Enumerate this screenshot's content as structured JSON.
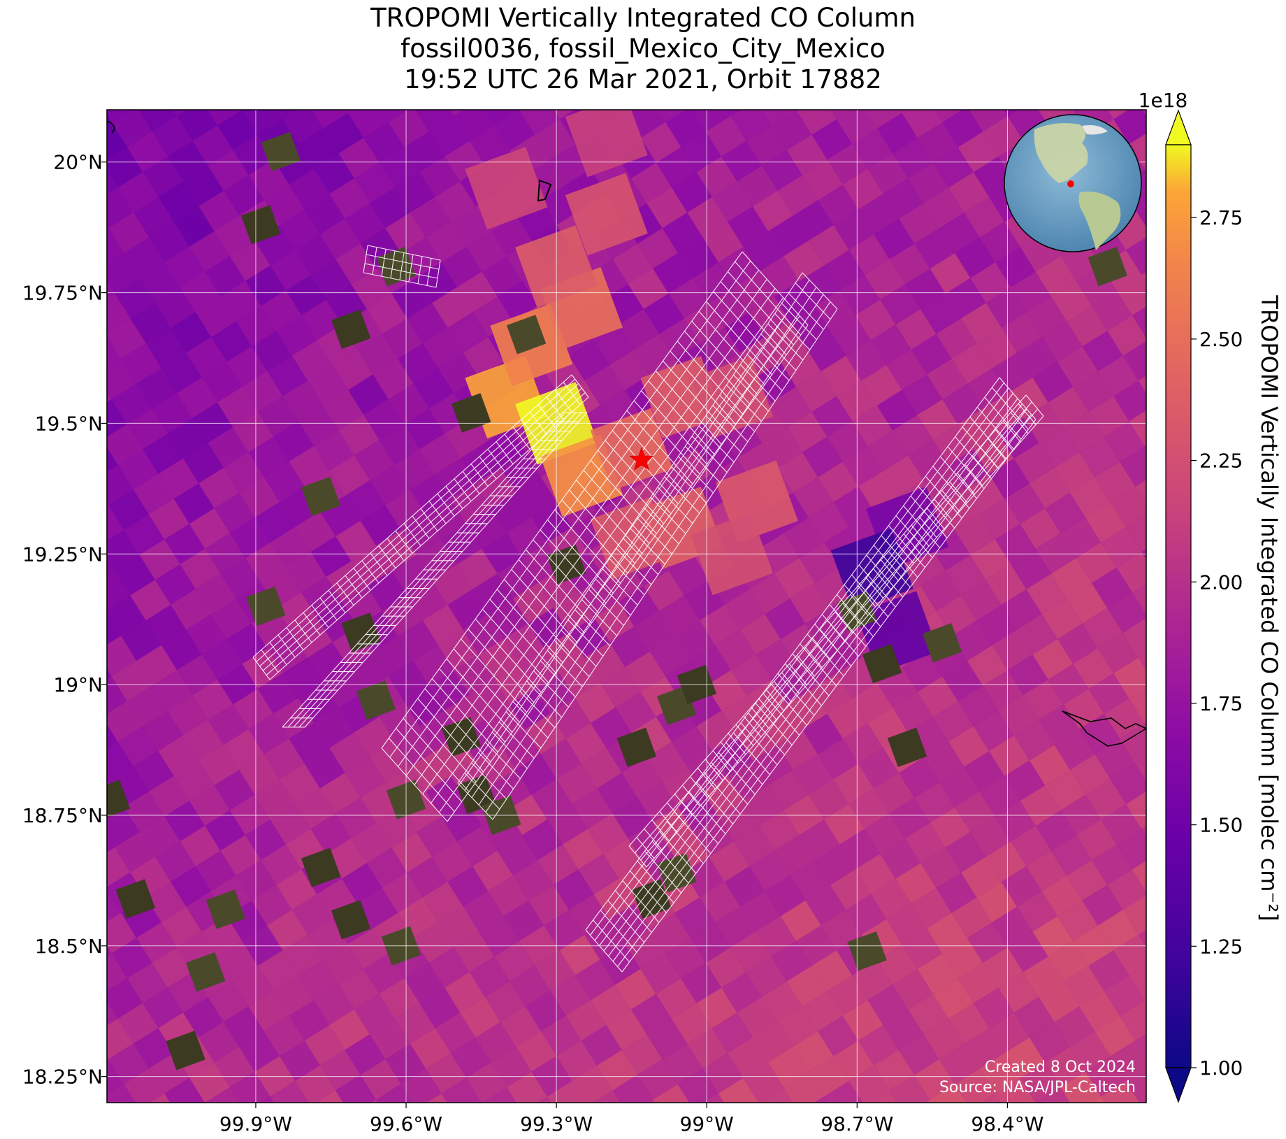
{
  "title": {
    "line1": "TROPOMI Vertically Integrated CO Column",
    "line2": "fossil0036, fossil_Mexico_City_Mexico",
    "line3": "19:52 UTC 26 Mar 2021, Orbit 17882"
  },
  "map": {
    "lon_range": [
      -100.2,
      -98.1
    ],
    "lat_range": [
      18.2,
      20.1
    ],
    "lon_ticks": [
      {
        "value": -99.9,
        "label": "99.9°W"
      },
      {
        "value": -99.6,
        "label": "99.6°W"
      },
      {
        "value": -99.3,
        "label": "99.3°W"
      },
      {
        "value": -99.0,
        "label": "99°W"
      },
      {
        "value": -98.7,
        "label": "98.7°W"
      },
      {
        "value": -98.4,
        "label": "98.4°W"
      }
    ],
    "lat_ticks": [
      {
        "value": 20.0,
        "label": "20°N"
      },
      {
        "value": 19.75,
        "label": "19.75°N"
      },
      {
        "value": 19.5,
        "label": "19.5°N"
      },
      {
        "value": 19.25,
        "label": "19.25°N"
      },
      {
        "value": 19.0,
        "label": "19°N"
      },
      {
        "value": 18.75,
        "label": "18.75°N"
      },
      {
        "value": 18.5,
        "label": "18.5°N"
      },
      {
        "value": 18.25,
        "label": "18.25°N"
      }
    ],
    "gridlines": true,
    "target_marker": {
      "lon": -99.13,
      "lat": 19.43,
      "color": "#ff0000",
      "icon": "star-icon"
    },
    "inset_globe": {
      "marker_color": "#ff0000",
      "icon": "globe-icon",
      "ocean_color": "#6fa3c7",
      "land_color": "#c9d4a6"
    },
    "credits": {
      "created": "Created 8 Oct 2024",
      "source": "Source: NASA/JPL-Caltech"
    }
  },
  "colorbar": {
    "label": "TROPOMI Vertically Integrated CO Column [molec cm⁻²]",
    "exponent": "1e18",
    "min": 1.0,
    "max": 2.9,
    "colormap": "plasma",
    "extend": "both",
    "ticks": [
      {
        "value": 1.0,
        "label": "1.00"
      },
      {
        "value": 1.25,
        "label": "1.25"
      },
      {
        "value": 1.5,
        "label": "1.50"
      },
      {
        "value": 1.75,
        "label": "1.75"
      },
      {
        "value": 2.0,
        "label": "2.00"
      },
      {
        "value": 2.25,
        "label": "2.25"
      },
      {
        "value": 2.5,
        "label": "2.50"
      },
      {
        "value": 2.75,
        "label": "2.75"
      }
    ]
  }
}
